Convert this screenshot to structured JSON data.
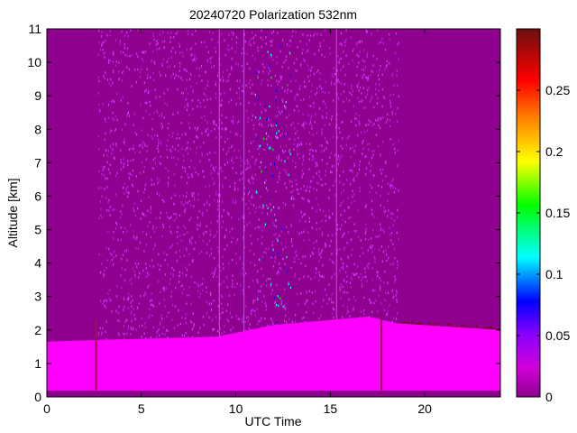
{
  "chart_data": {
    "type": "heatmap",
    "title": "20240720 Polarization 532nm",
    "xlabel": "UTC Time",
    "ylabel": "Altitude [km]",
    "xlim": [
      0,
      24
    ],
    "ylim": [
      0,
      11
    ],
    "x_ticks": [
      0,
      5,
      10,
      15,
      20
    ],
    "y_ticks": [
      0,
      1,
      2,
      3,
      4,
      5,
      6,
      7,
      8,
      9,
      10,
      11
    ],
    "colorbar": {
      "range": [
        0,
        0.3
      ],
      "ticks": [
        0,
        0.05,
        0.1,
        0.15,
        0.2,
        0.25
      ],
      "tick_labels": [
        "0",
        "0.05",
        "0.1",
        "0.15",
        "0.2",
        "0.25"
      ],
      "colormap": [
        "#8e008e",
        "#ff00ff",
        "#0000ff",
        "#00ffff",
        "#00ff00",
        "#ffff00",
        "#ff0000",
        "#6e0f0f"
      ]
    },
    "colors": {
      "background_fill": "#8e008e",
      "boundary_layer": "#ff00ff",
      "noise_speckle": "#d23cff"
    },
    "features": {
      "boundary_layer_top_km": [
        {
          "time": 0,
          "alt": 1.65
        },
        {
          "time": 2.5,
          "alt": 1.7
        },
        {
          "time": 9,
          "alt": 1.8
        },
        {
          "time": 12,
          "alt": 2.15
        },
        {
          "time": 15,
          "alt": 2.3
        },
        {
          "time": 17,
          "alt": 2.4
        },
        {
          "time": 18.5,
          "alt": 2.2
        },
        {
          "time": 24,
          "alt": 2.0
        }
      ],
      "noisy_period_utc": [
        2.7,
        18.6
      ],
      "high_noise_core_utc": [
        11.0,
        13.0
      ],
      "vertical_streaks_utc": [
        2.6,
        9.1,
        10.4,
        15.3,
        17.7
      ]
    }
  }
}
